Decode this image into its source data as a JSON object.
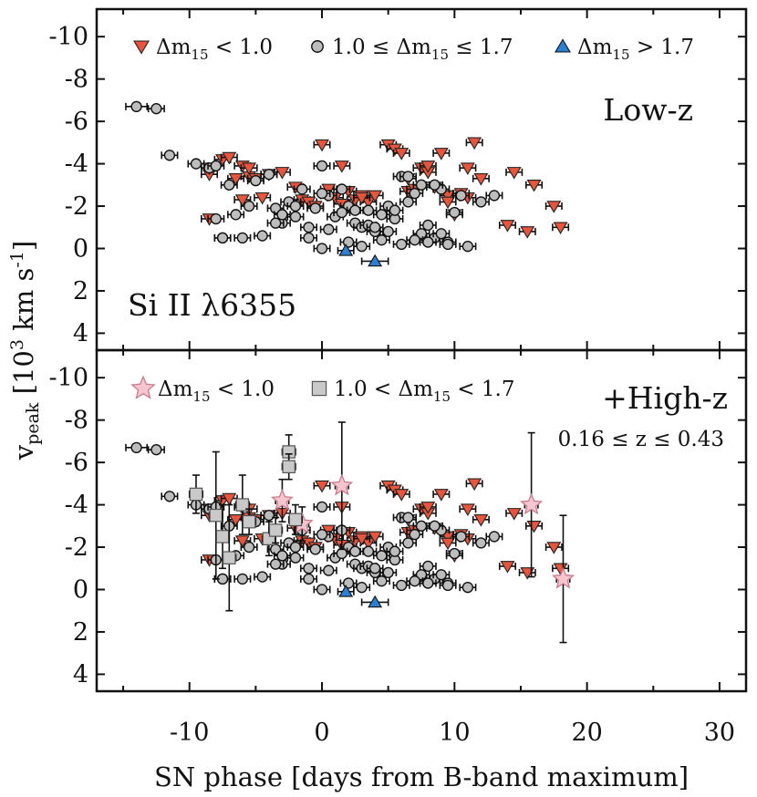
{
  "chart_data": {
    "type": "scatter",
    "xlabel": "SN phase [days from B-band maximum]",
    "ylabel_main": "v",
    "ylabel_sub": "peak",
    "ylabel_units_prefix": " [10",
    "ylabel_units_exp": "3",
    "ylabel_units_mid": " km s",
    "ylabel_units_exp2": "-1",
    "ylabel_units_suffix": "]",
    "xlim": [
      -17,
      32
    ],
    "ylim": [
      4.8,
      -11.3
    ],
    "y_inverted": true,
    "x_ticks": [
      -10,
      0,
      10,
      20,
      30
    ],
    "x_tick_labels": [
      "-10",
      "0",
      "10",
      "20",
      "30"
    ],
    "y_ticks": [
      -10,
      -8,
      -6,
      -4,
      -2,
      0,
      2,
      4
    ],
    "y_tick_labels": [
      "-10",
      "-8",
      "-6",
      "-4",
      "-2",
      "0",
      "2",
      "4"
    ],
    "panels": [
      {
        "label": "Low-z",
        "line_label": "Si II λ6355",
        "legend": [
          {
            "marker": "triangle-down",
            "name": "Δm",
            "sub": "15",
            "rest": " < 1.0"
          },
          {
            "marker": "circle",
            "pre": "1.0 ≤ ",
            "name": "Δm",
            "sub": "15",
            "rest": " ≤ 1.7"
          },
          {
            "marker": "triangle-up",
            "name": "Δm",
            "sub": "15",
            "rest": " > 1.7"
          }
        ]
      },
      {
        "label": "+High-z",
        "z_range": "0.16 ≤ z ≤ 0.43",
        "legend": [
          {
            "marker": "star",
            "name": "Δm",
            "sub": "15",
            "rest": " < 1.0"
          },
          {
            "marker": "square",
            "pre": "1.0 < ",
            "name": "Δm",
            "sub": "15",
            "rest": " < 1.7"
          }
        ]
      }
    ],
    "series": [
      {
        "name": "Δm15 < 1.0 (low-z)",
        "marker": "triangle-down",
        "color": "#e8553c",
        "x": [
          -8.5,
          -8.5,
          -7.5,
          -7.0,
          -6.0,
          -5.5,
          -5.0,
          -4.0,
          -3.0,
          -2.0,
          -1.5,
          -1.0,
          -0.5,
          0.0,
          0.5,
          1.0,
          1.5,
          2.0,
          2.5,
          3.0,
          3.5,
          4.0,
          5.0,
          5.5,
          6.0,
          6.5,
          7.0,
          7.5,
          8.0,
          8.5,
          9.0,
          9.5,
          10.0,
          10.5,
          11.0,
          11.5,
          12.0,
          14.5,
          15.5,
          16.0,
          17.5,
          18.0,
          -6.0,
          -6.5,
          -4.5,
          -5.5,
          -8.5,
          1.5,
          3.0,
          6.5,
          8.0,
          9.5,
          11.0,
          14.0
        ],
        "y": [
          -3.5,
          -1.4,
          -4.2,
          -4.3,
          -3.9,
          -3.4,
          -3.3,
          -3.5,
          -3.6,
          -2.9,
          -2.3,
          -2.2,
          -2.0,
          -4.9,
          -2.8,
          -2.4,
          -3.9,
          -2.7,
          -2.3,
          -2.5,
          -2.2,
          -2.5,
          -4.9,
          -4.7,
          -4.5,
          -2.7,
          -2.8,
          -3.8,
          -3.6,
          -2.9,
          -4.5,
          -2.5,
          -1.6,
          -2.6,
          -3.8,
          -5.0,
          -3.3,
          -3.6,
          -0.8,
          -3.0,
          -2.0,
          -1.0,
          -2.3,
          -3.3,
          -2.4,
          -3.8,
          -3.8,
          -2.1,
          -2.4,
          -3.3,
          -3.9,
          -2.2,
          -2.4,
          -1.1
        ],
        "xerr": [
          0.6,
          0.6,
          0.6,
          0.6,
          0.6,
          0.6,
          0.6,
          0.6,
          0.6,
          0.6,
          0.6,
          0.6,
          0.6,
          0.6,
          0.6,
          0.6,
          0.6,
          0.6,
          0.6,
          0.6,
          0.6,
          0.6,
          0.6,
          0.6,
          0.6,
          0.6,
          0.6,
          0.6,
          0.6,
          0.6,
          0.6,
          0.6,
          0.6,
          0.6,
          0.6,
          0.6,
          0.6,
          0.6,
          0.6,
          0.6,
          0.6,
          0.6,
          0.6,
          0.6,
          0.6,
          0.6,
          0.6,
          0.6,
          0.6,
          0.6,
          0.6,
          0.6,
          0.6,
          0.6
        ]
      },
      {
        "name": "1.0 ≤ Δm15 ≤ 1.7 (low-z)",
        "marker": "circle",
        "color": "#bdbdbd",
        "x": [
          -14.0,
          -12.5,
          -11.5,
          -9.5,
          -8.5,
          -8.0,
          -7.5,
          -7.0,
          -6.0,
          -5.0,
          -4.0,
          -3.5,
          -3.0,
          -2.5,
          -2.0,
          -1.5,
          -1.0,
          -0.5,
          0.0,
          0.5,
          1.0,
          1.5,
          2.0,
          2.5,
          3.0,
          3.5,
          4.0,
          4.5,
          5.0,
          5.5,
          6.0,
          6.5,
          7.0,
          7.5,
          8.0,
          8.5,
          9.0,
          9.5,
          10.0,
          12.0,
          13.0,
          -7.5,
          -6.5,
          -3.0,
          -2.0,
          -1.0,
          0.5,
          1.5,
          2.5,
          3.5,
          4.5,
          5.5,
          6.5,
          7.5,
          8.5,
          9.5,
          10.5,
          -8.0,
          -5.5,
          -3.5,
          0.0,
          2.0,
          4.0,
          6.0,
          8.0,
          -4.5,
          0.0,
          3.0,
          5.0,
          7.0,
          9.0,
          11.0
        ],
        "y": [
          -6.7,
          -6.6,
          -4.4,
          -4.0,
          -3.8,
          -3.9,
          -0.5,
          -3.0,
          -0.5,
          -3.2,
          -3.5,
          -1.9,
          -1.2,
          -2.2,
          -1.5,
          -2.8,
          -1.0,
          -1.9,
          -3.9,
          -2.5,
          -1.5,
          -2.8,
          -2.0,
          -1.2,
          -1.0,
          -1.8,
          -0.8,
          -1.6,
          -2.0,
          -1.4,
          -3.4,
          -2.2,
          -2.6,
          -3.0,
          -1.1,
          -0.5,
          -2.8,
          -0.3,
          -1.7,
          -2.2,
          -2.5,
          -0.5,
          -1.6,
          -1.6,
          -2.0,
          -0.5,
          -0.9,
          -1.7,
          -1.8,
          -1.1,
          -0.4,
          -1.8,
          -3.4,
          -0.7,
          -3.0,
          -0.2,
          -2.5,
          -1.4,
          -2.0,
          -1.2,
          -2.6,
          -0.3,
          -1.0,
          -0.2,
          -0.3,
          -0.6,
          0.0,
          -0.1,
          -0.8,
          -0.4,
          -0.7,
          -0.1
        ],
        "xerr": [
          0.8,
          0.6,
          0.6,
          0.6,
          0.6,
          0.6,
          0.6,
          0.6,
          0.6,
          0.6,
          0.6,
          0.6,
          0.6,
          0.6,
          0.6,
          0.6,
          0.6,
          0.6,
          0.6,
          0.6,
          0.6,
          0.6,
          0.6,
          0.6,
          0.6,
          0.6,
          0.6,
          0.6,
          0.6,
          0.6,
          0.6,
          0.6,
          0.6,
          0.6,
          0.6,
          0.6,
          0.6,
          0.6,
          0.6,
          0.6,
          0.6,
          0.6,
          0.6,
          0.6,
          0.6,
          0.6,
          0.6,
          0.6,
          0.6,
          0.6,
          0.6,
          0.6,
          0.6,
          0.6,
          0.6,
          0.6,
          0.6,
          0.6,
          0.6,
          0.6,
          0.6,
          0.6,
          0.6,
          0.6,
          0.6,
          0.6,
          0.6,
          0.6,
          0.6,
          0.6,
          0.6,
          0.6
        ]
      },
      {
        "name": "Δm15 > 1.7 (low-z)",
        "marker": "triangle-up",
        "color": "#2d7fd1",
        "x": [
          1.8,
          4.0
        ],
        "y": [
          0.1,
          0.6
        ],
        "xerr": [
          0.6,
          1.0
        ]
      },
      {
        "name": "Δm15 < 1.0 (high-z)",
        "marker": "star",
        "color": "#f7c5cf",
        "x": [
          -3.0,
          -1.5,
          1.5,
          15.8,
          18.2
        ],
        "y": [
          -4.2,
          -3.1,
          -4.9,
          -4.0,
          -0.5
        ],
        "xerr": [
          0.5,
          0.5,
          0.5,
          0.5,
          0.5
        ],
        "yerr": [
          1.0,
          0.8,
          3.0,
          3.4,
          3.0
        ]
      },
      {
        "name": "1.0 < Δm15 < 1.7 (high-z)",
        "marker": "square",
        "color": "#c9c9c9",
        "x": [
          -9.5,
          -8.0,
          -7.5,
          -7.0,
          -6.0,
          -5.5,
          -4.0,
          -3.5,
          -2.5,
          -2.5,
          -2.0
        ],
        "y": [
          -4.5,
          -3.5,
          -2.5,
          -1.5,
          -4.0,
          -3.2,
          -2.4,
          -2.8,
          -6.5,
          -5.8,
          -3.3
        ],
        "xerr": [
          0.5,
          0.5,
          0.5,
          0.5,
          0.5,
          0.5,
          0.5,
          0.5,
          0.5,
          0.5,
          0.5
        ],
        "yerr": [
          0.9,
          3.0,
          1.5,
          2.5,
          1.4,
          0.6,
          0.8,
          0.6,
          0.8,
          0.6,
          0.7
        ]
      }
    ]
  }
}
